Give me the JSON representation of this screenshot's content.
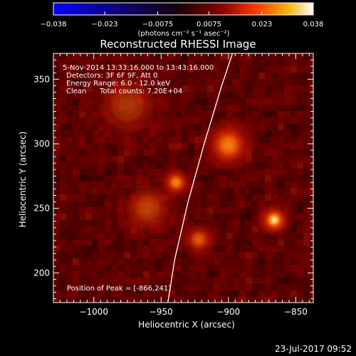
{
  "chart_data": {
    "type": "heatmap",
    "title": "Reconstructed RHESSI Image",
    "xlabel": "Heliocentric X (arcsec)",
    "ylabel": "Heliocentric Y (arcsec)",
    "xlim": [
      -1030,
      -837
    ],
    "ylim": [
      177,
      370
    ],
    "x_ticks": [
      -1000,
      -950,
      -900,
      -850
    ],
    "x_tick_labels": [
      "−1000",
      "−950",
      "−900",
      "−850"
    ],
    "y_ticks": [
      200,
      250,
      300,
      350
    ],
    "y_tick_labels": [
      "200",
      "250",
      "300",
      "350"
    ],
    "colorbar": {
      "min": -0.038,
      "max": 0.038,
      "ticks": [
        -0.038,
        -0.023,
        -0.0075,
        0.0075,
        0.023,
        0.038
      ],
      "tick_labels": [
        "−0.038",
        "−0.023",
        "−0.0075",
        "0.0075",
        "0.023",
        "0.038"
      ],
      "units_label": "(photons cm⁻² s⁻¹ asec⁻²)"
    },
    "annotations": {
      "time_range": "5-Nov-2014 13:33:16.000 to 13:43:16.000",
      "detectors": "Detectors: 3F 6F 9F, Att 0",
      "energy_range": "Energy Range: 6.0 - 12.0 keV",
      "clean": "Clean",
      "total_counts": "Total counts: 7.20E+04",
      "peak_position": "Position of Peak = [-866,241]"
    },
    "sources": [
      {
        "x": -866,
        "y": 241,
        "peak": 0.038,
        "sigma": 4.5
      },
      {
        "x": -900,
        "y": 299,
        "peak": 0.018,
        "sigma": 7
      },
      {
        "x": -939,
        "y": 270,
        "peak": 0.021,
        "sigma": 4
      },
      {
        "x": -922,
        "y": 226,
        "peak": 0.012,
        "sigma": 5
      },
      {
        "x": -960,
        "y": 250,
        "peak": 0.008,
        "sigma": 9
      },
      {
        "x": -975,
        "y": 330,
        "peak": 0.006,
        "sigma": 12
      }
    ],
    "limb": [
      [
        -945,
        177
      ],
      [
        -940,
        210
      ],
      [
        -930,
        255
      ],
      [
        -918,
        300
      ],
      [
        -905,
        345
      ],
      [
        -897,
        370
      ]
    ]
  },
  "footer": {
    "timestamp": "23-Jul-2017 09:52"
  }
}
